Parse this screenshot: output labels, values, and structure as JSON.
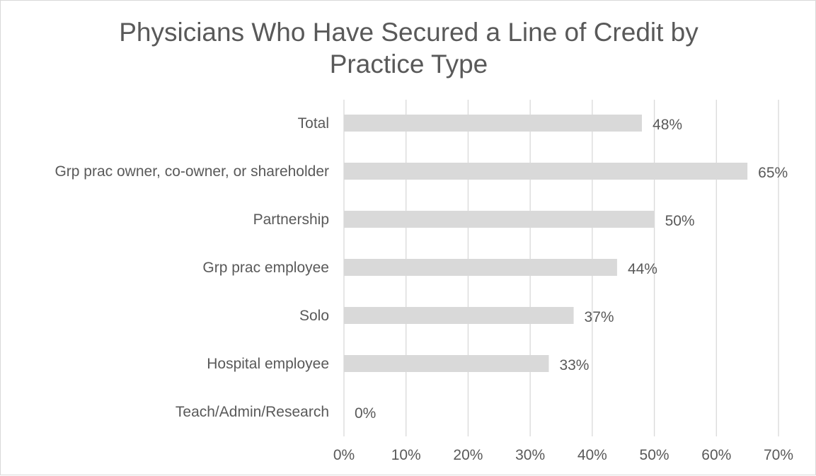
{
  "chart_data": {
    "type": "bar",
    "orientation": "horizontal",
    "title_lines": [
      "Physicians Who Have Secured a Line of Credit by",
      "Practice Type"
    ],
    "categories": [
      "Total",
      "Grp prac owner, co-owner, or shareholder",
      "Partnership",
      "Grp prac employee",
      "Solo",
      "Hospital employee",
      "Teach/Admin/Research"
    ],
    "values": [
      48,
      65,
      50,
      44,
      37,
      33,
      0
    ],
    "value_labels": [
      "48%",
      "65%",
      "50%",
      "44%",
      "37%",
      "33%",
      "0%"
    ],
    "xlim": [
      0,
      70
    ],
    "x_ticks": [
      0,
      10,
      20,
      30,
      40,
      50,
      60,
      70
    ],
    "x_tick_labels": [
      "0%",
      "10%",
      "20%",
      "30%",
      "40%",
      "50%",
      "60%",
      "70%"
    ],
    "grid": true,
    "legend": "none",
    "bar_color": "#d9d9d9",
    "grid_color": "#d9d9d9",
    "text_color": "#595959"
  }
}
